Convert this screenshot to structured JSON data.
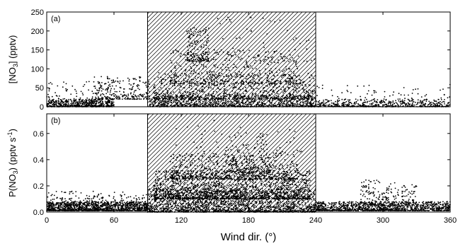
{
  "chart_data": [
    {
      "type": "scatter",
      "panel_label": "(a)",
      "xlabel": "Wind dir. (°)",
      "ylabel": "[NO3] (pptv)",
      "ylabel_parts": {
        "pre": "[NO",
        "sub": "3",
        "post": "] (pptv)"
      },
      "xlim": [
        0,
        360
      ],
      "ylim": [
        0,
        250
      ],
      "xticks": [
        0,
        60,
        120,
        180,
        240,
        300,
        360
      ],
      "yticks": [
        0,
        50,
        100,
        150,
        200,
        250
      ],
      "shaded_region": {
        "x": [
          90,
          240
        ],
        "pattern": "diagonal hatch"
      },
      "series": [
        {
          "marker": "dot",
          "color": "#000000",
          "density": [
            {
              "x": [
                0,
                60
              ],
              "y": [
                0,
                20
              ],
              "n": 520
            },
            {
              "x": [
                0,
                60
              ],
              "y": [
                10,
                70
              ],
              "n": 110
            },
            {
              "x": [
                40,
                92
              ],
              "y": [
                20,
                80
              ],
              "n": 260
            },
            {
              "x": [
                92,
                240
              ],
              "y": [
                0,
                30
              ],
              "n": 900
            },
            {
              "x": [
                95,
                240
              ],
              "y": [
                20,
                90
              ],
              "n": 700
            },
            {
              "x": [
                110,
                225
              ],
              "y": [
                60,
                150
              ],
              "n": 420
            },
            {
              "x": [
                125,
                145
              ],
              "y": [
                120,
                210
              ],
              "n": 170
            },
            {
              "x": [
                150,
                240
              ],
              "y": [
                120,
                240
              ],
              "n": 60
            },
            {
              "x": [
                240,
                360
              ],
              "y": [
                0,
                20
              ],
              "n": 520
            },
            {
              "x": [
                240,
                360
              ],
              "y": [
                10,
                60
              ],
              "n": 90
            }
          ]
        }
      ]
    },
    {
      "type": "scatter",
      "panel_label": "(b)",
      "xlabel": "Wind dir. (°)",
      "ylabel": "P(NO3) (pptv s-1)",
      "ylabel_parts": {
        "pre": "P(NO",
        "sub": "3",
        "mid": ") (pptv s",
        "sup": "-1",
        "post": ")"
      },
      "xlim": [
        0,
        360
      ],
      "ylim": [
        0,
        0.75
      ],
      "xticks": [
        0,
        60,
        120,
        180,
        240,
        300,
        360
      ],
      "yticks": [
        0.0,
        0.2,
        0.4,
        0.6
      ],
      "shaded_region": {
        "x": [
          90,
          240
        ],
        "pattern": "diagonal hatch"
      },
      "series": [
        {
          "marker": "dot",
          "color": "#000000",
          "density": [
            {
              "x": [
                0,
                90
              ],
              "y": [
                0.01,
                0.08
              ],
              "n": 1100
            },
            {
              "x": [
                0,
                90
              ],
              "y": [
                0.05,
                0.16
              ],
              "n": 220
            },
            {
              "x": [
                90,
                240
              ],
              "y": [
                0.0,
                0.18
              ],
              "n": 1600
            },
            {
              "x": [
                95,
                235
              ],
              "y": [
                0.1,
                0.32
              ],
              "n": 1400
            },
            {
              "x": [
                110,
                225
              ],
              "y": [
                0.25,
                0.45
              ],
              "n": 600
            },
            {
              "x": [
                160,
                200
              ],
              "y": [
                0.3,
                0.6
              ],
              "n": 170
            },
            {
              "x": [
                115,
                230
              ],
              "y": [
                0.45,
                0.7
              ],
              "n": 50
            },
            {
              "x": [
                240,
                360
              ],
              "y": [
                0.01,
                0.08
              ],
              "n": 1100
            },
            {
              "x": [
                280,
                330
              ],
              "y": [
                0.05,
                0.25
              ],
              "n": 220
            }
          ]
        }
      ]
    }
  ]
}
